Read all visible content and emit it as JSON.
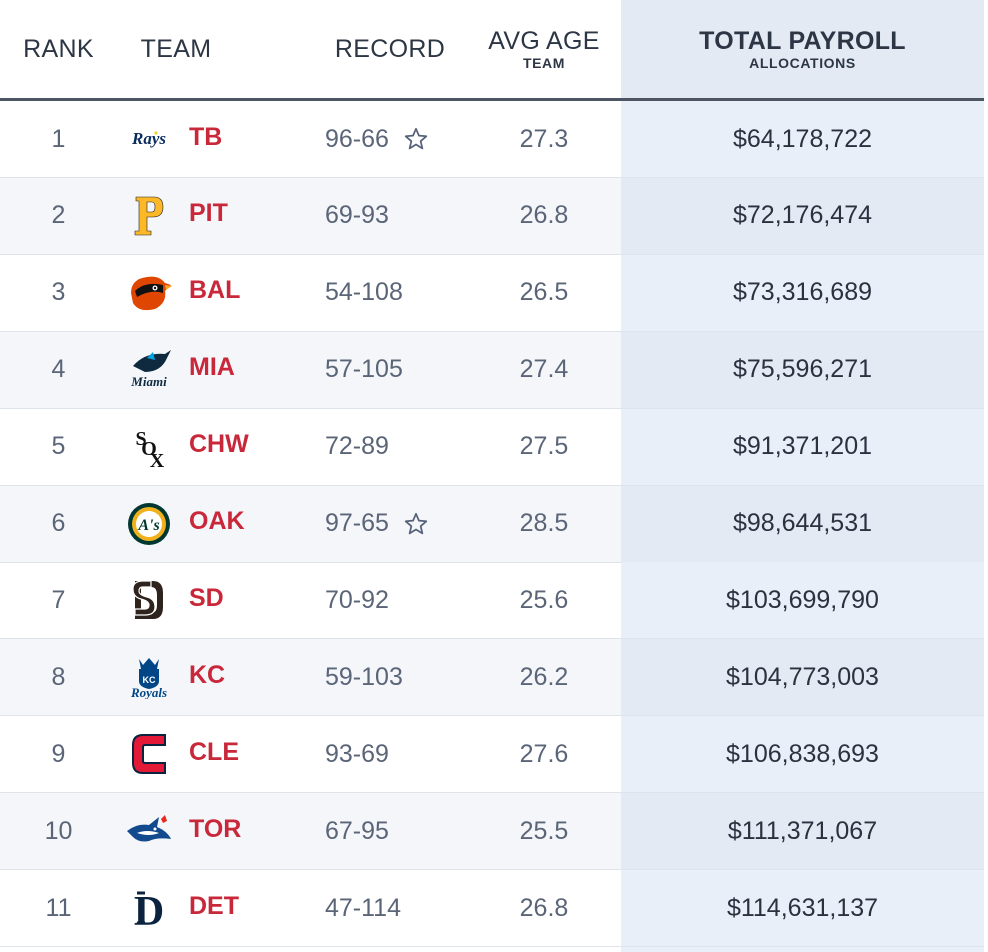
{
  "header": {
    "rank": "RANK",
    "team": "TEAM",
    "record": "RECORD",
    "avg_age": "AVG AGE",
    "avg_age_sub": "TEAM",
    "total_payroll": "TOTAL PAYROLL",
    "total_payroll_sub": "ALLOCATIONS"
  },
  "colors": {
    "team_abbr": "#c8283a",
    "payroll_column_bg": "#e9eff8",
    "header_rule": "#4d5563"
  },
  "rows": [
    {
      "rank": "1",
      "logo": "rays-logo-icon",
      "abbr": "TB",
      "record": "96-66",
      "playoff_star": true,
      "avg_age": "27.3",
      "payroll": "$64,178,722"
    },
    {
      "rank": "2",
      "logo": "pirates-logo-icon",
      "abbr": "PIT",
      "record": "69-93",
      "playoff_star": false,
      "avg_age": "26.8",
      "payroll": "$72,176,474"
    },
    {
      "rank": "3",
      "logo": "orioles-logo-icon",
      "abbr": "BAL",
      "record": "54-108",
      "playoff_star": false,
      "avg_age": "26.5",
      "payroll": "$73,316,689"
    },
    {
      "rank": "4",
      "logo": "marlins-logo-icon",
      "abbr": "MIA",
      "record": "57-105",
      "playoff_star": false,
      "avg_age": "27.4",
      "payroll": "$75,596,271"
    },
    {
      "rank": "5",
      "logo": "white-sox-logo-icon",
      "abbr": "CHW",
      "record": "72-89",
      "playoff_star": false,
      "avg_age": "27.5",
      "payroll": "$91,371,201"
    },
    {
      "rank": "6",
      "logo": "athletics-logo-icon",
      "abbr": "OAK",
      "record": "97-65",
      "playoff_star": true,
      "avg_age": "28.5",
      "payroll": "$98,644,531"
    },
    {
      "rank": "7",
      "logo": "padres-logo-icon",
      "abbr": "SD",
      "record": "70-92",
      "playoff_star": false,
      "avg_age": "25.6",
      "payroll": "$103,699,790"
    },
    {
      "rank": "8",
      "logo": "royals-logo-icon",
      "abbr": "KC",
      "record": "59-103",
      "playoff_star": false,
      "avg_age": "26.2",
      "payroll": "$104,773,003"
    },
    {
      "rank": "9",
      "logo": "indians-logo-icon",
      "abbr": "CLE",
      "record": "93-69",
      "playoff_star": false,
      "avg_age": "27.6",
      "payroll": "$106,838,693"
    },
    {
      "rank": "10",
      "logo": "blue-jays-logo-icon",
      "abbr": "TOR",
      "record": "67-95",
      "playoff_star": false,
      "avg_age": "25.5",
      "payroll": "$111,371,067"
    },
    {
      "rank": "11",
      "logo": "tigers-logo-icon",
      "abbr": "DET",
      "record": "47-114",
      "playoff_star": false,
      "avg_age": "26.8",
      "payroll": "$114,631,137"
    }
  ]
}
